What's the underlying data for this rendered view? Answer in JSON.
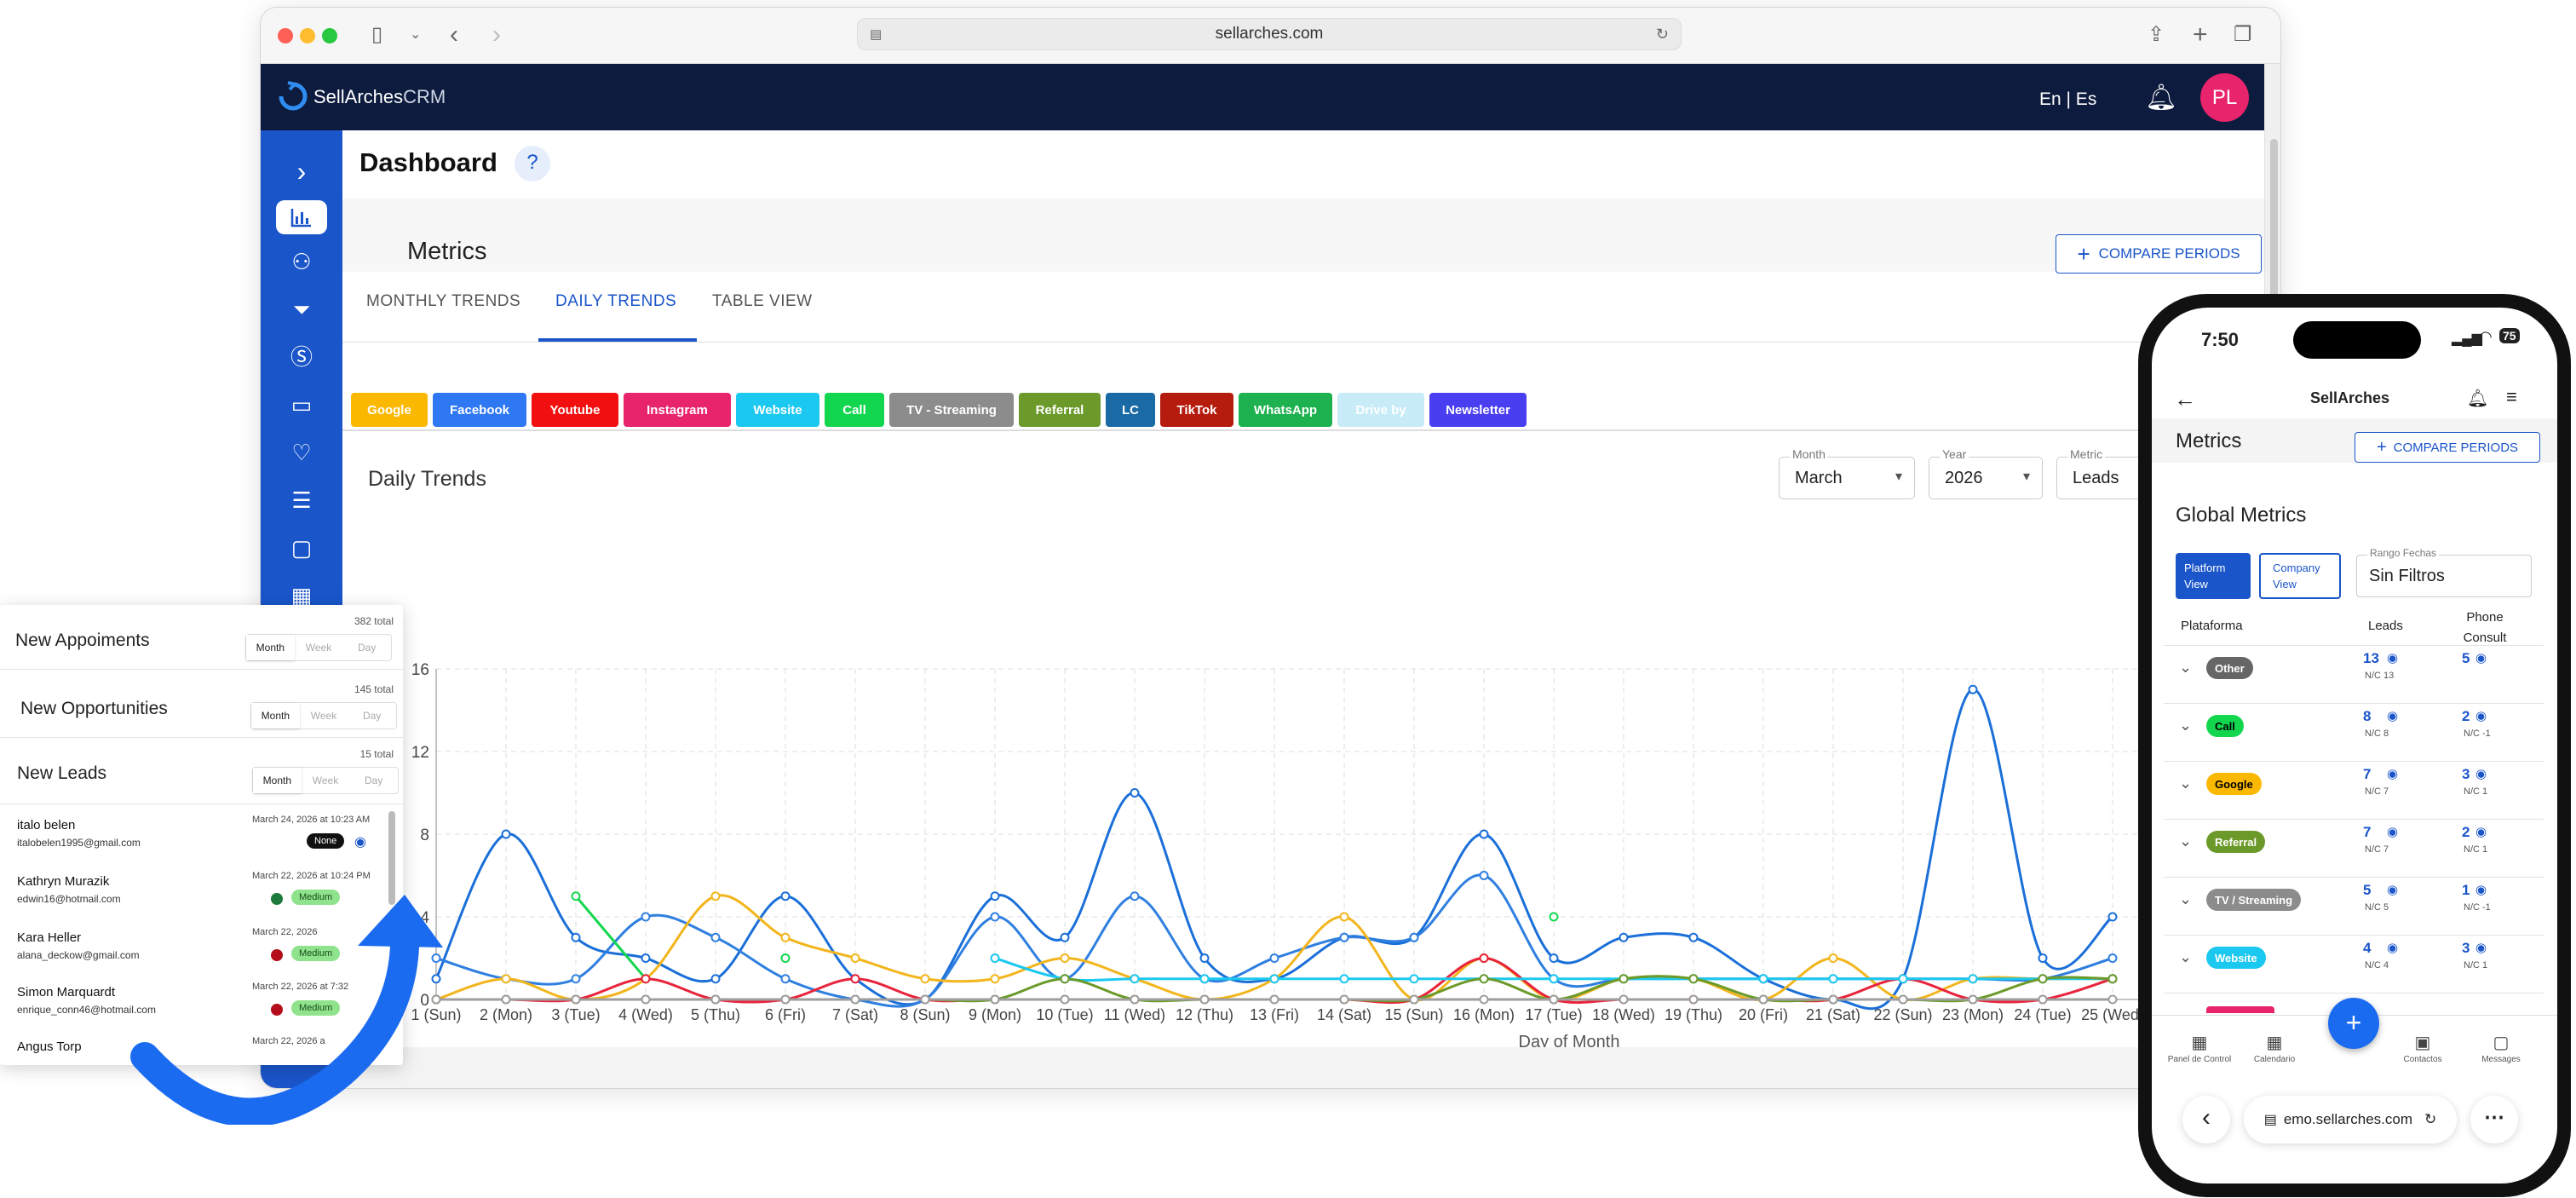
{
  "browser": {
    "url": "sellarches.com"
  },
  "app": {
    "brand": "SellArches",
    "brand_suffix": "CRM",
    "lang": "En | Es",
    "avatar": "PL",
    "page_title": "Dashboard",
    "metrics_title": "Metrics",
    "compare_button": "COMPARE PERIODS",
    "tabs": [
      "MONTHLY TRENDS",
      "DAILY TRENDS",
      "TABLE VIEW"
    ],
    "active_tab": "DAILY TRENDS",
    "platform_chips": [
      {
        "label": "Google",
        "color": "#fbb800"
      },
      {
        "label": "Facebook",
        "color": "#2f78f3"
      },
      {
        "label": "Youtube",
        "color": "#f20f0f"
      },
      {
        "label": "Instagram",
        "color": "#e8246c"
      },
      {
        "label": "Website",
        "color": "#1bc8ef"
      },
      {
        "label": "Call",
        "color": "#13d64f"
      },
      {
        "label": "TV - Streaming",
        "color": "#8c8c8c"
      },
      {
        "label": "Referral",
        "color": "#6b9a2a"
      },
      {
        "label": "LC",
        "color": "#1a6aa6"
      },
      {
        "label": "TikTok",
        "color": "#b61c0e"
      },
      {
        "label": "WhatsApp",
        "color": "#1eb14f"
      },
      {
        "label": "Drive by",
        "color": "#c7ecf8"
      },
      {
        "label": "Newsletter",
        "color": "#4a3ff0"
      }
    ],
    "filters": {
      "month_label": "Month",
      "month_value": "March",
      "year_label": "Year",
      "year_value": "2026",
      "metric_label": "Metric",
      "metric_value": "Leads"
    }
  },
  "chart_data": {
    "type": "line",
    "title": "Daily Trends",
    "xlabel": "Day of Month",
    "ylabel": "",
    "ylim": [
      0,
      16
    ],
    "yticks": [
      0,
      4,
      8,
      12,
      16
    ],
    "grid": true,
    "categories": [
      "1 (Sun)",
      "2 (Mon)",
      "3 (Tue)",
      "4 (Wed)",
      "5 (Thu)",
      "6 (Fri)",
      "7 (Sat)",
      "8 (Sun)",
      "9 (Mon)",
      "10 (Tue)",
      "11 (Wed)",
      "12 (Thu)",
      "13 (Fri)",
      "14 (Sat)",
      "15 (Sun)",
      "16 (Mon)",
      "17 (Tue)",
      "18 (Wed)",
      "19 (Thu)",
      "20 (Fri)",
      "21 (Sat)",
      "22 (Sun)",
      "23 (Mon)",
      "24 (Tue)",
      "25 (Wed)"
    ],
    "series": [
      {
        "color": "#1a6fd8",
        "values": [
          1,
          8,
          3,
          2,
          1,
          5,
          1,
          0,
          5,
          3,
          10,
          2,
          1,
          3,
          3,
          8,
          2,
          3,
          3,
          1,
          0,
          1,
          15,
          2,
          4
        ]
      },
      {
        "color": "#2f7fe0",
        "values": [
          2,
          1,
          1,
          4,
          3,
          1,
          0,
          0,
          4,
          1,
          5,
          1,
          2,
          3,
          3,
          6,
          1,
          1,
          1,
          1,
          1,
          1,
          1,
          1,
          2
        ]
      },
      {
        "color": "#f2b51c",
        "values": [
          0,
          1,
          0,
          1,
          5,
          3,
          2,
          1,
          1,
          2,
          1,
          0,
          1,
          4,
          0,
          2,
          0,
          1,
          1,
          0,
          2,
          0,
          1,
          1,
          1
        ]
      },
      {
        "color": "#13d64f",
        "values": [
          null,
          null,
          5,
          1,
          null,
          2,
          null,
          null,
          null,
          null,
          null,
          null,
          null,
          null,
          null,
          null,
          4,
          null,
          null,
          null,
          null,
          null,
          null,
          null,
          null
        ]
      },
      {
        "color": "#e8243c",
        "values": [
          0,
          0,
          0,
          1,
          0,
          0,
          1,
          0,
          0,
          0,
          0,
          0,
          0,
          0,
          0,
          2,
          0,
          0,
          0,
          0,
          0,
          1,
          0,
          0,
          1
        ]
      },
      {
        "color": "#1bc8ef",
        "values": [
          null,
          null,
          null,
          null,
          null,
          null,
          null,
          null,
          2,
          1,
          1,
          1,
          1,
          1,
          1,
          1,
          1,
          1,
          1,
          1,
          1,
          1,
          1,
          1,
          1
        ]
      },
      {
        "color": "#6b9a2a",
        "values": [
          0,
          0,
          0,
          0,
          0,
          0,
          0,
          0,
          0,
          1,
          0,
          0,
          0,
          0,
          0,
          1,
          0,
          1,
          1,
          0,
          0,
          0,
          0,
          1,
          1
        ]
      },
      {
        "color": "#9e9e9e",
        "values": [
          0,
          0,
          0,
          0,
          0,
          0,
          0,
          0,
          0,
          0,
          0,
          0,
          0,
          0,
          0,
          0,
          0,
          0,
          0,
          0,
          0,
          0,
          0,
          0,
          0
        ]
      }
    ]
  },
  "leads_panel": {
    "cards": [
      {
        "title": "New Appoiments",
        "total": "382 total",
        "seg": [
          "Month",
          "Week",
          "Day"
        ]
      },
      {
        "title": "New Opportunities",
        "total": "145 total",
        "seg": [
          "Month",
          "Week",
          "Day"
        ]
      },
      {
        "title": "New Leads",
        "total": "15 total",
        "seg": [
          "Month",
          "Week",
          "Day"
        ]
      }
    ],
    "leads": [
      {
        "name": "italo belen",
        "email": "italobelen1995@gmail.com",
        "date": "March 24, 2026 at 10:23 AM",
        "badge": "None"
      },
      {
        "name": "Kathryn Murazik",
        "email": "edwin16@hotmail.com",
        "date": "March 22, 2026 at 10:24 PM",
        "badge": "Medium"
      },
      {
        "name": "Kara Heller",
        "email": "alana_deckow@gmail.com",
        "date": "March 22, 2026",
        "badge": "Medium"
      },
      {
        "name": "Simon Marquardt",
        "email": "enrique_conn46@hotmail.com",
        "date": "March 22, 2026 at 7:32",
        "badge": "Medium"
      },
      {
        "name": "Angus Torp",
        "email": "",
        "date": "March 22, 2026 a",
        "badge": ""
      }
    ]
  },
  "phone": {
    "time": "7:50",
    "battery": "75",
    "header_title": "SellArches",
    "metrics_title": "Metrics",
    "compare_button": "COMPARE PERIODS",
    "global_title": "Global Metrics",
    "view_platform": "Platform View",
    "view_company": "Company View",
    "range_label": "Rango Fechas",
    "range_value": "Sin Filtros",
    "col_platform": "Plataforma",
    "col_leads": "Leads",
    "col_phone": "Phone Consult",
    "rows": [
      {
        "platform": "Other",
        "color": "#666666",
        "text": "#fff",
        "leads": "13",
        "leads_nc": "N/C 13",
        "phone": "5",
        "phone_nc": ""
      },
      {
        "platform": "Call",
        "color": "#13d64f",
        "text": "#000",
        "leads": "8",
        "leads_nc": "N/C 8",
        "phone": "2",
        "phone_nc": "N/C -1"
      },
      {
        "platform": "Google",
        "color": "#fbb800",
        "text": "#000",
        "leads": "7",
        "leads_nc": "N/C 7",
        "phone": "3",
        "phone_nc": "N/C 1"
      },
      {
        "platform": "Referral",
        "color": "#6b9a2a",
        "text": "#fff",
        "leads": "7",
        "leads_nc": "N/C 7",
        "phone": "2",
        "phone_nc": "N/C 1"
      },
      {
        "platform": "TV / Streaming",
        "color": "#8c8c8c",
        "text": "#fff",
        "leads": "5",
        "leads_nc": "N/C 5",
        "phone": "1",
        "phone_nc": "N/C -1"
      },
      {
        "platform": "Website",
        "color": "#1bc8ef",
        "text": "#fff",
        "leads": "4",
        "leads_nc": "N/C 4",
        "phone": "3",
        "phone_nc": "N/C 1"
      }
    ],
    "bottom_nav": [
      "Panel de Control",
      "Calendario",
      "",
      "Contactos",
      "Messages"
    ],
    "url": "emo.sellarches.com"
  }
}
